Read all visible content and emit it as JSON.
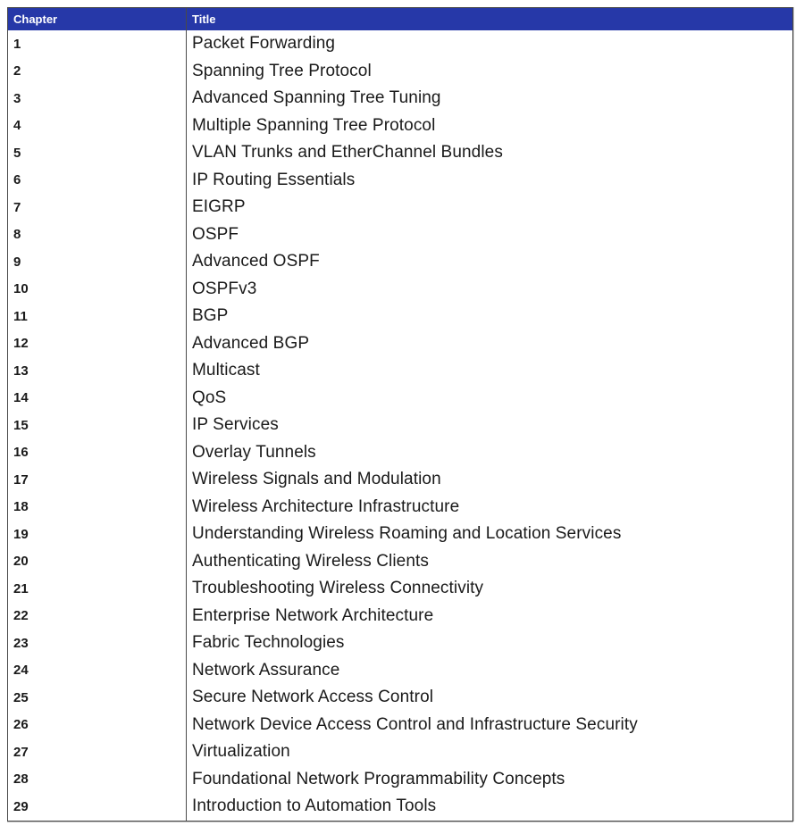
{
  "colors": {
    "header_bg": "#2638a8",
    "header_text": "#ffffff",
    "border": "#4a4a4a"
  },
  "table": {
    "columns": [
      {
        "key": "chapter",
        "label": "Chapter"
      },
      {
        "key": "title",
        "label": "Title"
      }
    ],
    "rows": [
      {
        "chapter": "1",
        "title": "Packet Forwarding"
      },
      {
        "chapter": "2",
        "title": "Spanning Tree Protocol"
      },
      {
        "chapter": "3",
        "title": "Advanced Spanning Tree Tuning"
      },
      {
        "chapter": "4",
        "title": "Multiple Spanning Tree Protocol"
      },
      {
        "chapter": "5",
        "title": "VLAN Trunks and EtherChannel Bundles"
      },
      {
        "chapter": "6",
        "title": "IP Routing Essentials"
      },
      {
        "chapter": "7",
        "title": "EIGRP"
      },
      {
        "chapter": "8",
        "title": "OSPF"
      },
      {
        "chapter": "9",
        "title": "Advanced OSPF"
      },
      {
        "chapter": "10",
        "title": "OSPFv3"
      },
      {
        "chapter": "11",
        "title": "BGP"
      },
      {
        "chapter": "12",
        "title": "Advanced BGP"
      },
      {
        "chapter": "13",
        "title": "Multicast"
      },
      {
        "chapter": "14",
        "title": "QoS"
      },
      {
        "chapter": "15",
        "title": "IP Services"
      },
      {
        "chapter": "16",
        "title": "Overlay Tunnels"
      },
      {
        "chapter": "17",
        "title": "Wireless Signals and Modulation"
      },
      {
        "chapter": "18",
        "title": "Wireless Architecture Infrastructure"
      },
      {
        "chapter": "19",
        "title": "Understanding Wireless Roaming and Location Services"
      },
      {
        "chapter": "20",
        "title": "Authenticating Wireless Clients"
      },
      {
        "chapter": "21",
        "title": "Troubleshooting Wireless Connectivity"
      },
      {
        "chapter": "22",
        "title": "Enterprise Network Architecture"
      },
      {
        "chapter": "23",
        "title": "Fabric Technologies"
      },
      {
        "chapter": "24",
        "title": "Network Assurance"
      },
      {
        "chapter": "25",
        "title": "Secure Network Access Control"
      },
      {
        "chapter": "26",
        "title": "Network Device Access Control and Infrastructure Security"
      },
      {
        "chapter": "27",
        "title": "Virtualization"
      },
      {
        "chapter": "28",
        "title": "Foundational Network Programmability Concepts"
      },
      {
        "chapter": "29",
        "title": "Introduction to Automation Tools"
      }
    ]
  }
}
